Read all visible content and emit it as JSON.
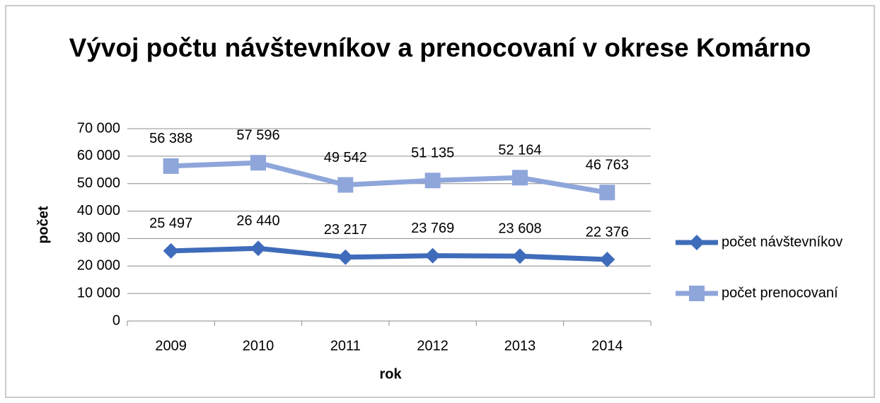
{
  "chart_data": {
    "type": "line",
    "title": "Vývoj počtu návštevníkov a prenocovaní v okrese Komárno",
    "xlabel": "rok",
    "ylabel": "počet",
    "categories": [
      "2009",
      "2010",
      "2011",
      "2012",
      "2013",
      "2014"
    ],
    "series": [
      {
        "name": "počet návštevníkov",
        "color": "#3f6cba",
        "marker": "diamond",
        "values": [
          25497,
          26440,
          23217,
          23769,
          23608,
          22376
        ],
        "value_labels": [
          "25 497",
          "26 440",
          "23 217",
          "23 769",
          "23 608",
          "22 376"
        ]
      },
      {
        "name": "počet prenocovaní",
        "color": "#8ea6da",
        "marker": "square",
        "values": [
          56388,
          57596,
          49542,
          51135,
          52164,
          46763
        ],
        "value_labels": [
          "56 388",
          "57 596",
          "49 542",
          "51 135",
          "52 164",
          "46 763"
        ]
      }
    ],
    "ylim": [
      0,
      70000
    ],
    "yticks": [
      0,
      {
        "value": 10000,
        "label": "10 000"
      },
      {
        "value": 20000,
        "label": "20 000"
      },
      {
        "value": 30000,
        "label": "30 000"
      },
      {
        "value": 40000,
        "label": "40 000"
      },
      {
        "value": 50000,
        "label": "50 000"
      },
      {
        "value": 60000,
        "label": "60 000"
      },
      {
        "value": 70000,
        "label": "70 000"
      }
    ],
    "grid": true,
    "legend": "right"
  }
}
